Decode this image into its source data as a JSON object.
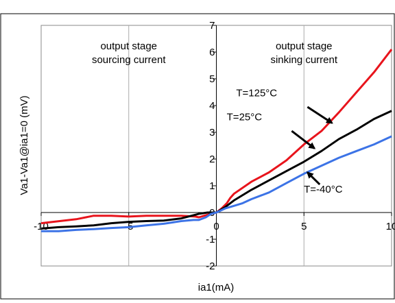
{
  "chart_data": {
    "type": "line",
    "xlabel": "ia1(mA)",
    "ylabel": "Va1-Va1@ia1=0 (mV)",
    "xlim": [
      -10,
      10
    ],
    "ylim": [
      -2,
      7
    ],
    "xticks": [
      -10,
      -5,
      0,
      5,
      10
    ],
    "yticks": [
      -2,
      -1,
      0,
      1,
      2,
      3,
      4,
      5,
      6,
      7
    ],
    "grid": "vertical",
    "regions": [
      {
        "lines": [
          "output stage",
          "sourcing current"
        ],
        "x": -5,
        "y": 6.1
      },
      {
        "lines": [
          "output stage",
          "sinking current"
        ],
        "x": 5,
        "y": 6.1
      }
    ],
    "series": [
      {
        "name": "T=125°C",
        "color": "#e8141c",
        "label_at": [
          2.3,
          4.35
        ],
        "arrow_from": [
          5.2,
          3.95
        ],
        "arrow_to": [
          6.6,
          3.35
        ],
        "x": [
          -10,
          -8,
          -7,
          -6,
          -5,
          -4,
          -3,
          -2,
          -1.2,
          -1,
          -0.6,
          -0.3,
          0,
          0.3,
          0.6,
          0.8,
          1,
          2,
          3,
          4,
          5,
          6,
          7,
          8,
          9,
          10
        ],
        "y": [
          -0.4,
          -0.25,
          -0.12,
          -0.12,
          -0.15,
          -0.12,
          -0.12,
          -0.12,
          -0.15,
          -0.18,
          -0.1,
          -0.05,
          0,
          0.15,
          0.35,
          0.55,
          0.7,
          1.15,
          1.5,
          1.95,
          2.55,
          3.05,
          3.75,
          4.5,
          5.25,
          6.1
        ]
      },
      {
        "name": "T=25°C",
        "color": "#000000",
        "label_at": [
          1.6,
          3.45
        ],
        "arrow_from": [
          4.3,
          3.05
        ],
        "arrow_to": [
          5.6,
          2.4
        ],
        "x": [
          -10,
          -9,
          -8,
          -7,
          -6,
          -5,
          -4,
          -3,
          -2,
          -1.3,
          -1,
          -0.5,
          0,
          0.5,
          1,
          2,
          3,
          4,
          5,
          6,
          7,
          8,
          9,
          10
        ],
        "y": [
          -0.6,
          -0.55,
          -0.52,
          -0.48,
          -0.4,
          -0.35,
          -0.32,
          -0.3,
          -0.22,
          -0.1,
          -0.05,
          0,
          0,
          0.2,
          0.45,
          0.85,
          1.2,
          1.55,
          1.9,
          2.3,
          2.75,
          3.1,
          3.5,
          3.8
        ]
      },
      {
        "name": "T=-40°C",
        "color": "#3c73e6",
        "label_at": [
          6.1,
          0.75
        ],
        "arrow_from": [
          5.9,
          1.05
        ],
        "arrow_to": [
          5.2,
          1.5
        ],
        "x": [
          -10,
          -9,
          -8,
          -7,
          -6,
          -5,
          -4,
          -3,
          -2,
          -1.3,
          -1,
          -0.6,
          -0.3,
          0,
          0.5,
          1,
          1.5,
          2,
          3,
          4,
          5,
          6,
          7,
          8,
          9,
          10
        ],
        "y": [
          -0.7,
          -0.7,
          -0.65,
          -0.62,
          -0.58,
          -0.55,
          -0.48,
          -0.42,
          -0.32,
          -0.28,
          -0.28,
          -0.18,
          -0.05,
          0,
          0.15,
          0.25,
          0.35,
          0.5,
          0.75,
          1.1,
          1.45,
          1.75,
          2.05,
          2.3,
          2.55,
          2.85
        ]
      }
    ]
  }
}
